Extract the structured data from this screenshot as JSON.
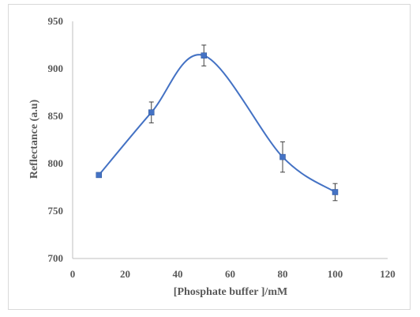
{
  "chart_data": {
    "type": "scatter",
    "title": "",
    "xlabel": "[Phosphate buffer ]/mM",
    "ylabel": "Reflectance (a.u)",
    "xlim": [
      0,
      120
    ],
    "ylim": [
      700,
      950
    ],
    "xticks": [
      0,
      20,
      40,
      60,
      80,
      100,
      120
    ],
    "yticks": [
      700,
      750,
      800,
      850,
      900,
      950
    ],
    "grid": false,
    "legend": "none",
    "series": [
      {
        "points": [
          {
            "x": 10,
            "y": 788,
            "err": 0
          },
          {
            "x": 30,
            "y": 854,
            "err": 11
          },
          {
            "x": 50,
            "y": 914,
            "err": 11
          },
          {
            "x": 80,
            "y": 807,
            "err": 16
          },
          {
            "x": 100,
            "y": 770,
            "err": 9
          }
        ],
        "smooth": true,
        "line_color": "#4472c4",
        "marker_color": "#4472c4"
      }
    ],
    "axis_color": "#bfbfbf",
    "errorbar_color": "#404040"
  }
}
